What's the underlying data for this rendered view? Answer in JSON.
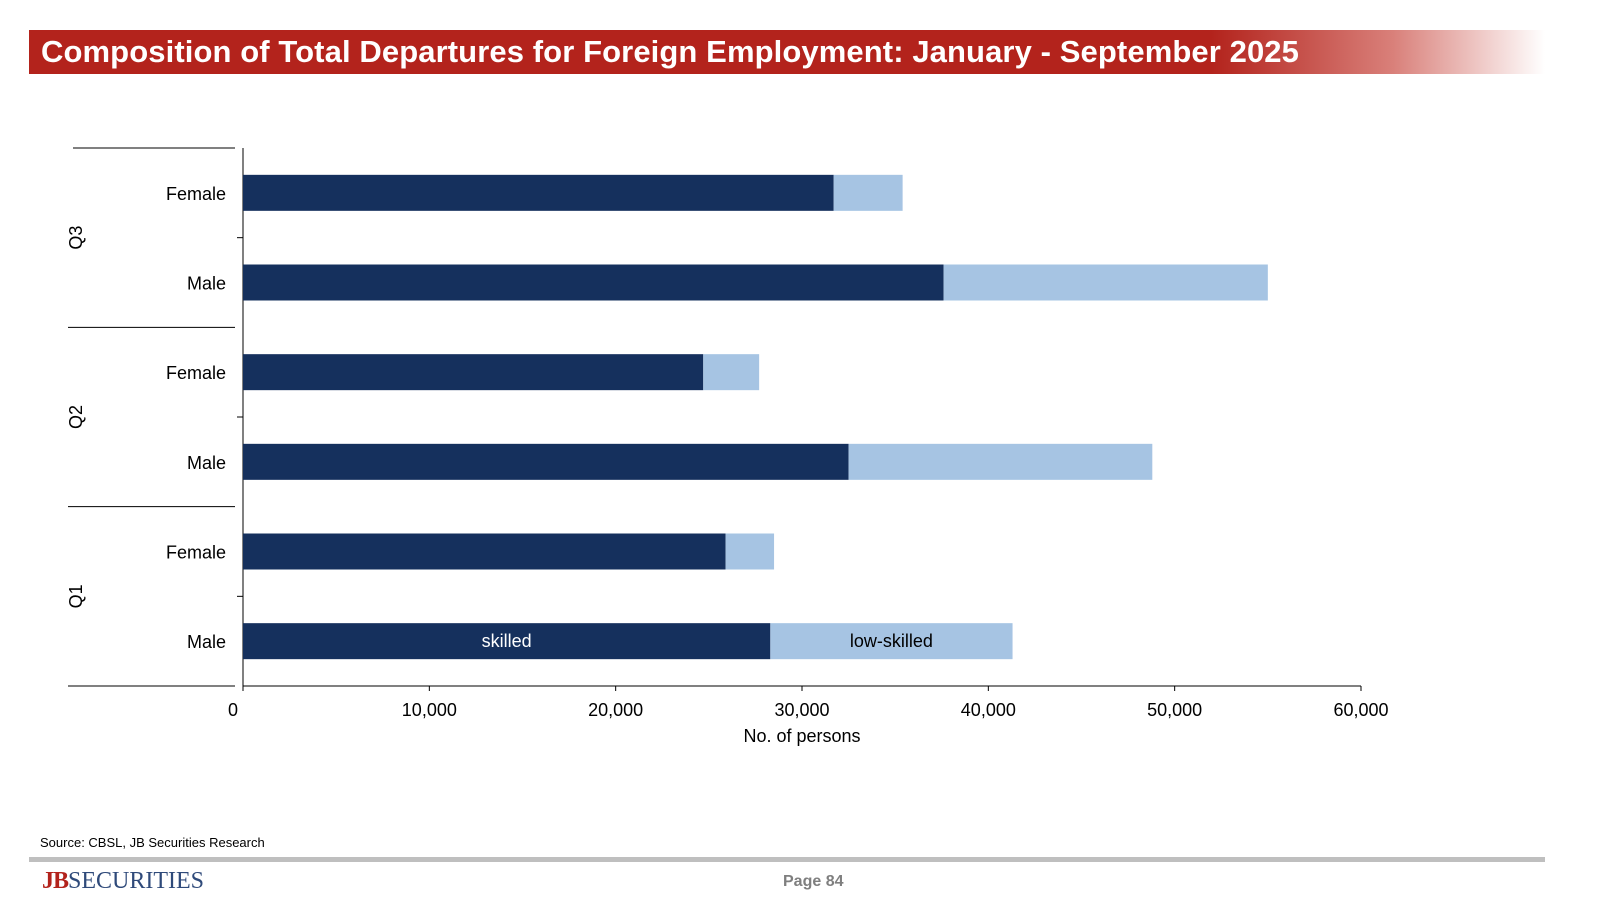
{
  "title": "Composition of Total Departures for Foreign Employment: January - September 2025",
  "source": "Source: CBSL, JB Securities Research",
  "footer": {
    "logo_jb": "JB",
    "logo_securities": "SECURITIES",
    "page_label": "Page  84"
  },
  "colors": {
    "skilled": "#15305d",
    "low_skilled": "#a6c4e3",
    "title_bg": "#b3231c"
  },
  "chart_data": {
    "type": "bar",
    "orientation": "horizontal",
    "stacked": true,
    "title": "Composition of Total Departures for Foreign Employment: January - September 2025",
    "xlabel": "No. of persons",
    "ylabel": "",
    "xlim": [
      0,
      60000
    ],
    "xticks": [
      "0",
      "10,000",
      "20,000",
      "30,000",
      "40,000",
      "50,000",
      "60,000"
    ],
    "groups": [
      "Q3",
      "Q2",
      "Q1"
    ],
    "categories": [
      {
        "group": "Q3",
        "label": "Female"
      },
      {
        "group": "Q3",
        "label": "Male"
      },
      {
        "group": "Q2",
        "label": "Female"
      },
      {
        "group": "Q2",
        "label": "Male"
      },
      {
        "group": "Q1",
        "label": "Female"
      },
      {
        "group": "Q1",
        "label": "Male"
      }
    ],
    "series": [
      {
        "name": "skilled",
        "values": [
          31700,
          37600,
          24700,
          32500,
          25900,
          28300
        ]
      },
      {
        "name": "low-skilled",
        "values": [
          3700,
          17400,
          3000,
          16300,
          2600,
          13000
        ]
      }
    ],
    "annotations": [
      {
        "text": "skilled",
        "series": "skilled",
        "category_index": 5
      },
      {
        "text": "low-skilled",
        "series": "low-skilled",
        "category_index": 5
      }
    ],
    "grid": false,
    "legend": "none"
  }
}
